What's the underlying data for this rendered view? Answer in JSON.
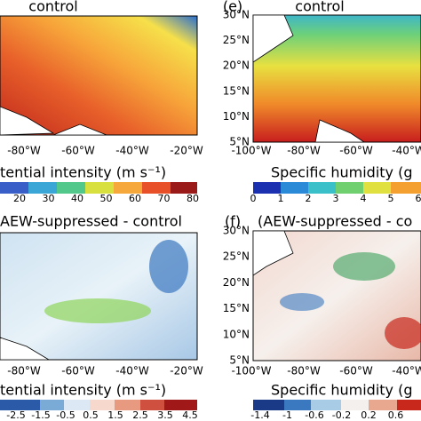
{
  "panels": [
    {
      "title": "control",
      "x_ticks": [
        "-80°W",
        "-60°W",
        "-40°W",
        "-20°W"
      ],
      "colorbar": {
        "label": "tential intensity (m s⁻¹)",
        "ticks": [
          20,
          30,
          40,
          50,
          60,
          70,
          80
        ]
      }
    },
    {
      "label": "(e)",
      "title": "control",
      "x_ticks": [
        "-100°W",
        "-80°W",
        "-60°W",
        "-40°W"
      ],
      "y_ticks": [
        "30°N",
        "25°N",
        "20°N",
        "15°N",
        "10°N",
        "5°N"
      ],
      "colorbar": {
        "label": "Specific humidity (g",
        "ticks": [
          0,
          1,
          2,
          3,
          4,
          5,
          6
        ]
      }
    },
    {
      "title": "AEW-suppressed - control",
      "x_ticks": [
        "-80°W",
        "-60°W",
        "-40°W",
        "-20°W"
      ],
      "colorbar": {
        "label": "tential intensity (m s⁻¹)",
        "ticks": [
          -2.5,
          -1.5,
          -0.5,
          0.5,
          1.5,
          2.5,
          3.5,
          4.5
        ]
      }
    },
    {
      "label": "(f)",
      "title": "(AEW-suppressed - co",
      "x_ticks": [
        "-100°W",
        "-80°W",
        "-60°W",
        "-40°W"
      ],
      "y_ticks": [
        "30°N",
        "25°N",
        "20°N",
        "15°N",
        "10°N",
        "5°N"
      ],
      "colorbar": {
        "label": "Specific humidity (g",
        "ticks": [
          -1.4,
          -1,
          -0.6,
          -0.2,
          0.2,
          0.6
        ]
      }
    }
  ]
}
